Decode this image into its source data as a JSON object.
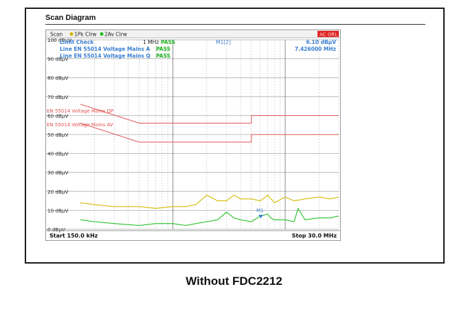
{
  "panel": {
    "title": "Scan Diagram"
  },
  "caption": "Without FDC2212",
  "toolbar": {
    "scan_label": "Scan",
    "trace1_label": "1Pk Clrw",
    "trace2_label": "2Av Clrw",
    "badge_label": "AC ORL",
    "trace1_color": "#d4b800",
    "trace2_color": "#22c022",
    "badge_color": "#e02020"
  },
  "overlay": {
    "limit_check_label": "Limit Check",
    "line_a_label": "Line EN 55014 Voltage Mains A",
    "line_q_label": "Line EN 55014 Voltage Mains Q",
    "pass_label": "PASS",
    "marker_id": "M1[2]",
    "marker_level": "6.10 dBµV",
    "marker_freq": "7.426000 MHz",
    "freq_mark_label": "1 MHz",
    "marker_flag": "M1",
    "qp_limit_label": "EN 55014 Voltage Mains QP",
    "av_limit_label": "EN 55014 Voltage Mains AV"
  },
  "footer": {
    "start_label": "Start 150.0 kHz",
    "stop_label": "Stop 30.0 MHz"
  },
  "chart_data": {
    "type": "line",
    "title": "",
    "xlabel": "",
    "ylabel": "",
    "xlim": [
      0.15,
      30
    ],
    "x_scale": "log",
    "ylim": [
      0,
      100
    ],
    "y_ticks": [
      {
        "value": 100,
        "label": "100 dBµV"
      },
      {
        "value": 90,
        "label": "90 dBµV"
      },
      {
        "value": 80,
        "label": "80 dBµV"
      },
      {
        "value": 70,
        "label": "70 dBµV"
      },
      {
        "value": 60,
        "label": "60 dBµV"
      },
      {
        "value": 50,
        "label": "50 dBµV"
      },
      {
        "value": 40,
        "label": "40 dBµV"
      },
      {
        "value": 30,
        "label": "30 dBµV"
      },
      {
        "value": 20,
        "label": "20 dBµV"
      },
      {
        "value": 10,
        "label": "10 dBµV"
      },
      {
        "value": 0,
        "label": "0 dBµV"
      }
    ],
    "grid": true,
    "series": [
      {
        "name": "1Pk Clrw",
        "color": "#d4b800",
        "x": [
          0.15,
          0.2,
          0.3,
          0.5,
          0.7,
          1.0,
          1.3,
          1.6,
          2.0,
          2.5,
          3.0,
          3.5,
          4.0,
          5.0,
          6.0,
          7.0,
          8.0,
          10.0,
          12.0,
          15.0,
          20.0,
          25.0,
          30.0
        ],
        "y": [
          14,
          13,
          12,
          12,
          11,
          12,
          12,
          13,
          18,
          15,
          15,
          18,
          16,
          16,
          15,
          18,
          14,
          17,
          15,
          16,
          17,
          16,
          17
        ]
      },
      {
        "name": "2Av Clrw",
        "color": "#22c022",
        "x": [
          0.15,
          0.2,
          0.3,
          0.5,
          0.7,
          1.0,
          1.3,
          1.6,
          2.0,
          2.5,
          3.0,
          3.5,
          4.0,
          5.0,
          6.0,
          7.0,
          7.4,
          8.0,
          10.0,
          12.0,
          13.0,
          15.0,
          20.0,
          25.0,
          30.0
        ],
        "y": [
          5,
          4,
          3,
          2,
          3,
          3,
          2,
          3,
          4,
          5,
          9,
          6,
          5,
          4,
          7,
          8,
          6,
          5,
          5,
          4,
          11,
          5,
          6,
          6,
          7
        ]
      }
    ],
    "limit_lines": [
      {
        "name": "EN 55014 Voltage Mains QP",
        "color": "#e05050",
        "x": [
          0.15,
          0.5,
          5.0,
          5.0,
          30.0
        ],
        "y": [
          66,
          56,
          56,
          60,
          60
        ]
      },
      {
        "name": "EN 55014 Voltage Mains AV",
        "color": "#e05050",
        "x": [
          0.15,
          0.5,
          5.0,
          5.0,
          30.0
        ],
        "y": [
          56,
          46,
          46,
          50,
          50
        ]
      }
    ]
  }
}
